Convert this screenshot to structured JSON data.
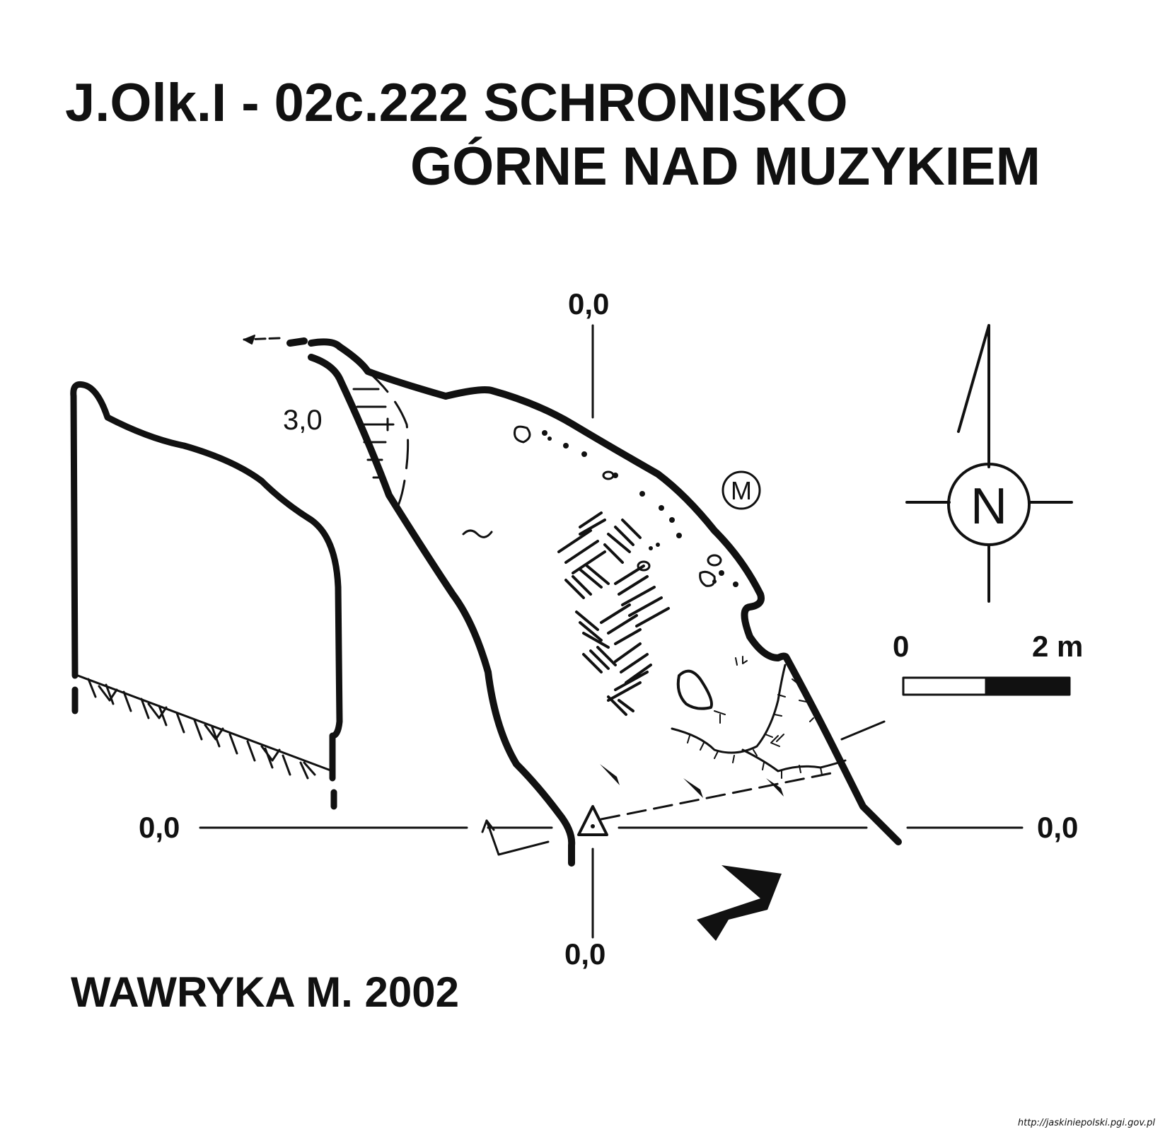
{
  "title": {
    "line1": "J.Olk.I - 02c.222  SCHRONISKO",
    "line2": "GÓRNE NAD MUZYKIEM"
  },
  "author": "WAWRYKA M. 2002",
  "datum_labels": {
    "top": "0,0",
    "bottom": "0,0",
    "left": "0,0",
    "right": "0,0"
  },
  "depth_label": "3,0",
  "compass": {
    "letter": "N"
  },
  "scale_bar": {
    "start": "0",
    "end": "2 m"
  },
  "map_symbol": "M",
  "source": "http://jaskiniepolski.pgi.gov.pl",
  "colors": {
    "ink": "#111111",
    "background": "#ffffff"
  }
}
